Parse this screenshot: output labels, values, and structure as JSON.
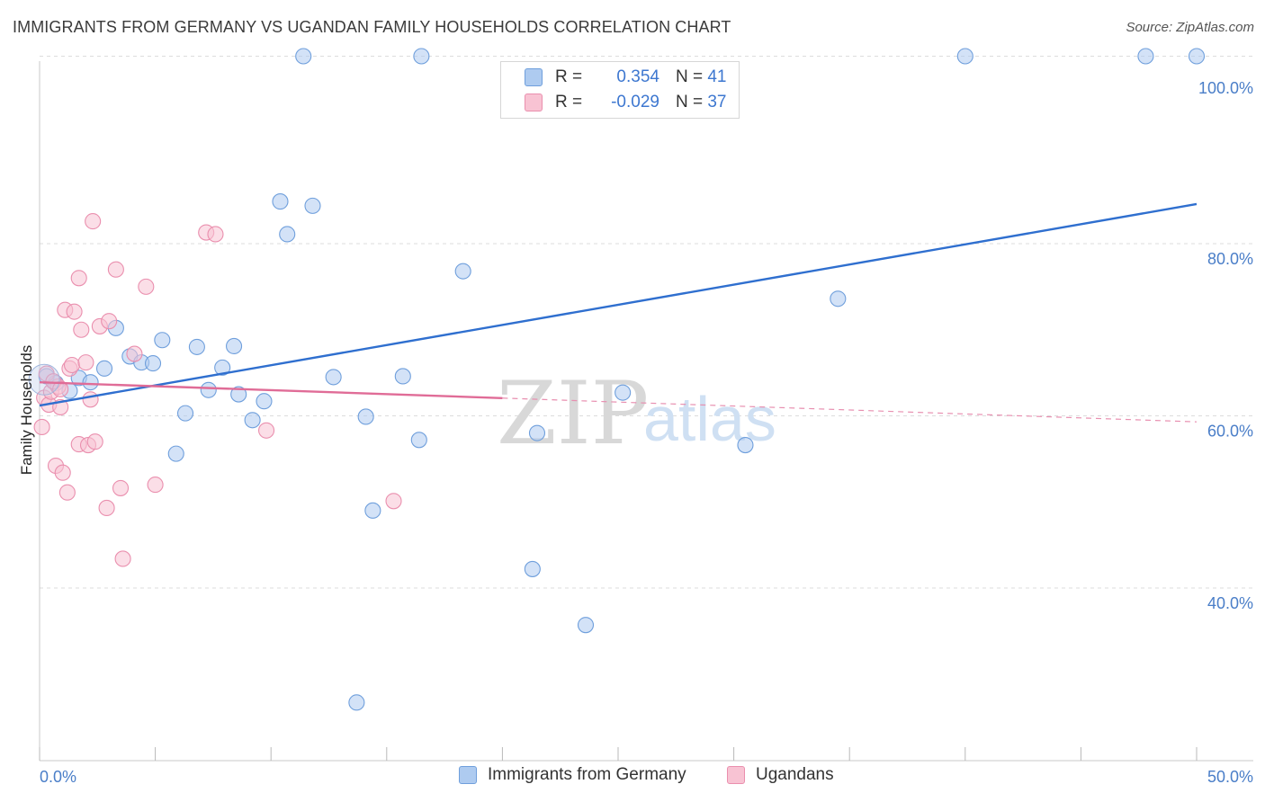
{
  "header": {
    "title": "IMMIGRANTS FROM GERMANY VS UGANDAN FAMILY HOUSEHOLDS CORRELATION CHART",
    "source": "Source: ZipAtlas.com"
  },
  "watermark": {
    "zip": "ZIP",
    "atlas": "atlas"
  },
  "legend": {
    "rows": [
      {
        "r_label": "R =",
        "r_value": "0.354",
        "n_label": "N =",
        "n_value": "41",
        "color": "#aecbf0",
        "border": "#6f9fdc"
      },
      {
        "r_label": "R =",
        "r_value": "-0.029",
        "n_label": "N =",
        "n_value": "37",
        "color": "#f8c3d3",
        "border": "#ea8fae"
      }
    ]
  },
  "bottom_legend": [
    {
      "label": "Immigrants from Germany",
      "color": "#aecbf0",
      "border": "#6f9fdc"
    },
    {
      "label": "Ugandans",
      "color": "#f8c3d3",
      "border": "#ea8fae"
    }
  ],
  "chart_data": {
    "type": "scatter",
    "title": "IMMIGRANTS FROM GERMANY VS UGANDAN FAMILY HOUSEHOLDS CORRELATION CHART",
    "xlabel": "",
    "ylabel": "Family Households",
    "xlim": [
      0,
      50
    ],
    "ylim": [
      20,
      103
    ],
    "x_tick_labels": [
      {
        "value": 0,
        "label": "0.0%"
      },
      {
        "value": 50,
        "label": "50.0%"
      }
    ],
    "y_tick_labels": [
      {
        "value": 40,
        "label": "40.0%"
      },
      {
        "value": 60,
        "label": "60.0%"
      },
      {
        "value": 80,
        "label": "80.0%"
      },
      {
        "value": 100,
        "label": "100.0%"
      }
    ],
    "series": [
      {
        "name": "Immigrants from Germany",
        "color": "#6f9fdc",
        "fill": "#aecbf0",
        "trend": {
          "x0": 0,
          "y0": 61.2,
          "x1": 50,
          "y1": 84.6,
          "dashed_from": null
        },
        "points": [
          [
            0.3,
            64.6
          ],
          [
            0.7,
            63.8
          ],
          [
            1.3,
            62.9
          ],
          [
            1.7,
            64.4
          ],
          [
            2.2,
            63.9
          ],
          [
            2.8,
            65.5
          ],
          [
            3.3,
            70.2
          ],
          [
            3.9,
            66.9
          ],
          [
            4.4,
            66.2
          ],
          [
            4.9,
            66.1
          ],
          [
            5.3,
            68.8
          ],
          [
            5.9,
            55.6
          ],
          [
            6.3,
            60.3
          ],
          [
            6.8,
            68.0
          ],
          [
            7.3,
            63.0
          ],
          [
            7.9,
            65.6
          ],
          [
            8.4,
            68.1
          ],
          [
            8.6,
            62.5
          ],
          [
            9.2,
            59.5
          ],
          [
            9.7,
            61.7
          ],
          [
            10.4,
            84.9
          ],
          [
            10.7,
            81.1
          ],
          [
            11.4,
            100.0
          ],
          [
            11.8,
            84.4
          ],
          [
            12.7,
            64.5
          ],
          [
            13.7,
            26.7
          ],
          [
            14.1,
            59.9
          ],
          [
            14.4,
            49.0
          ],
          [
            15.7,
            64.6
          ],
          [
            16.4,
            57.2
          ],
          [
            16.5,
            100.0
          ],
          [
            18.3,
            76.8
          ],
          [
            21.3,
            42.2
          ],
          [
            21.5,
            58.0
          ],
          [
            23.6,
            35.7
          ],
          [
            25.2,
            62.7
          ],
          [
            30.5,
            56.6
          ],
          [
            34.5,
            73.6
          ],
          [
            40.0,
            100.0
          ],
          [
            47.8,
            100.0
          ],
          [
            50.0,
            100.0
          ]
        ]
      },
      {
        "name": "Ugandans",
        "color": "#ea8fae",
        "fill": "#f8c3d3",
        "trend": {
          "x0": 0,
          "y0": 63.9,
          "x1": 50,
          "y1": 59.3,
          "dashed_from": 20
        },
        "points": [
          [
            0.1,
            58.7
          ],
          [
            0.2,
            62.1
          ],
          [
            0.3,
            64.9
          ],
          [
            0.4,
            61.3
          ],
          [
            0.5,
            62.8
          ],
          [
            0.7,
            54.2
          ],
          [
            0.8,
            63.4
          ],
          [
            0.9,
            61.0
          ],
          [
            1.0,
            53.4
          ],
          [
            1.1,
            72.3
          ],
          [
            1.2,
            51.1
          ],
          [
            1.3,
            65.5
          ],
          [
            1.4,
            65.9
          ],
          [
            1.5,
            72.1
          ],
          [
            1.7,
            56.7
          ],
          [
            1.7,
            76.0
          ],
          [
            1.8,
            70.0
          ],
          [
            2.1,
            56.6
          ],
          [
            2.2,
            61.9
          ],
          [
            2.3,
            82.6
          ],
          [
            2.4,
            57.0
          ],
          [
            2.6,
            70.4
          ],
          [
            2.9,
            49.3
          ],
          [
            3.0,
            71.0
          ],
          [
            3.3,
            77.0
          ],
          [
            3.5,
            51.6
          ],
          [
            3.6,
            43.4
          ],
          [
            4.1,
            67.2
          ],
          [
            4.6,
            75.0
          ],
          [
            5.0,
            52.0
          ],
          [
            7.2,
            81.3
          ],
          [
            7.6,
            81.1
          ],
          [
            9.8,
            58.3
          ],
          [
            15.3,
            50.1
          ],
          [
            0.6,
            64.0
          ],
          [
            0.9,
            63.1
          ],
          [
            2.0,
            66.2
          ]
        ]
      }
    ],
    "grid": true
  }
}
